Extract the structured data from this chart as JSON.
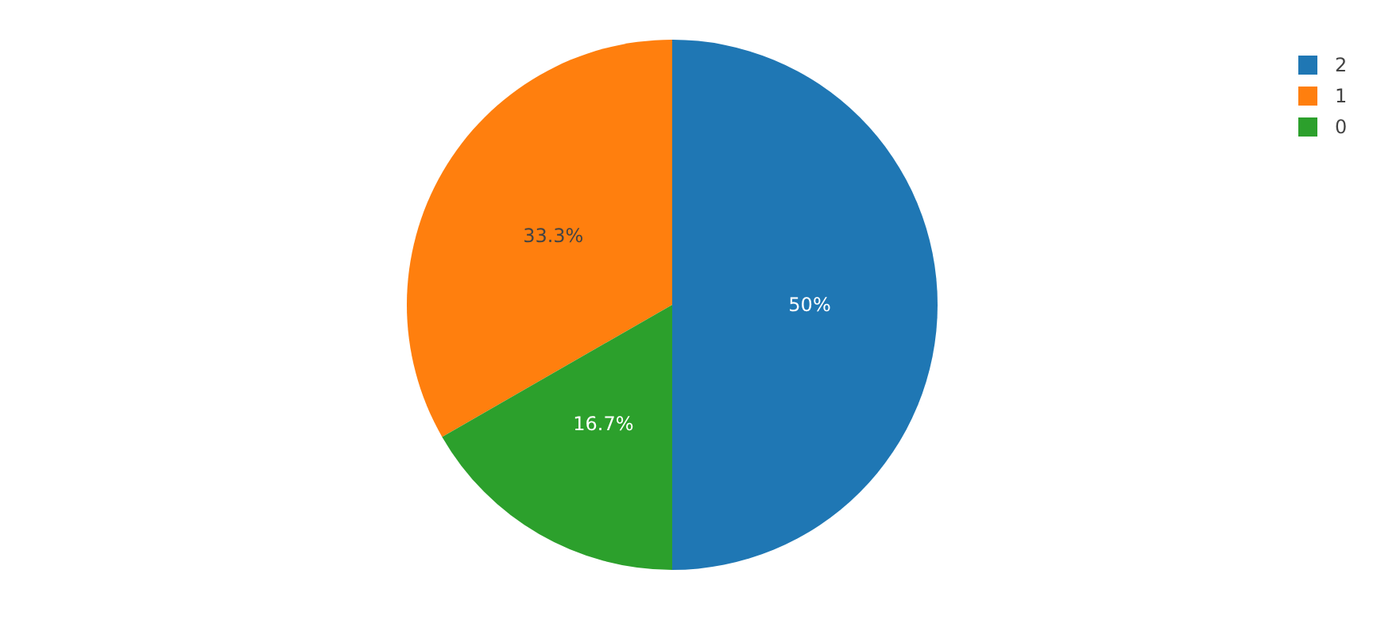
{
  "chart_data": {
    "type": "pie",
    "categories": [
      "2",
      "1",
      "0"
    ],
    "values": [
      50,
      33.3,
      16.7
    ],
    "colors": [
      "#1f77b4",
      "#ff7f0e",
      "#2ca02c"
    ],
    "value_labels": [
      "50%",
      "33.3%",
      "16.7%"
    ],
    "legend": "top right"
  }
}
